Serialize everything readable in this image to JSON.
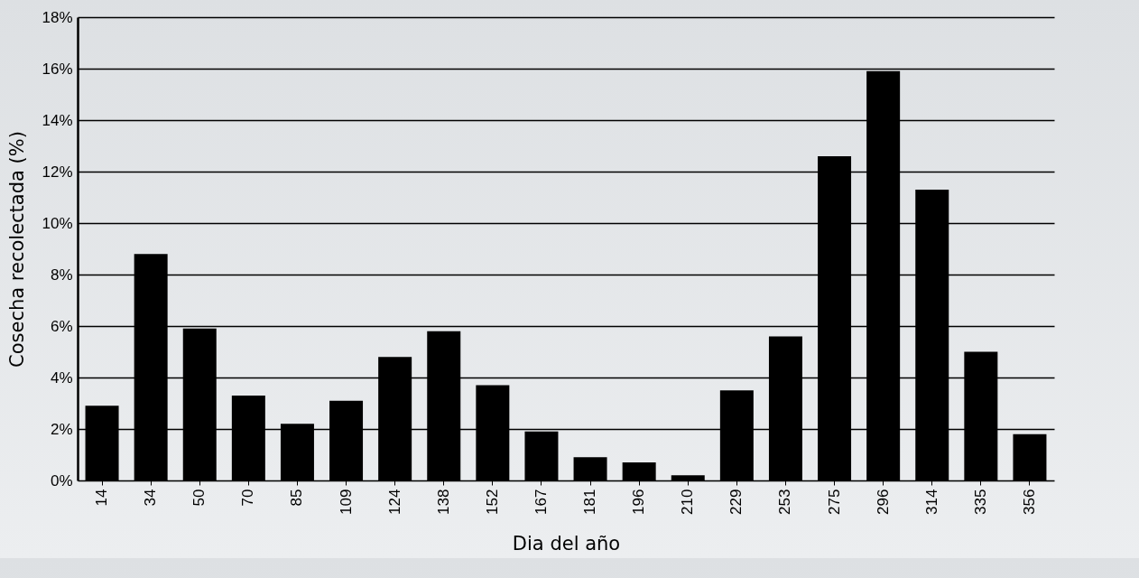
{
  "chart_data": {
    "type": "bar",
    "xlabel": "Dia del año",
    "ylabel": "Cosecha recolectada (%)",
    "categories": [
      "14",
      "34",
      "50",
      "70",
      "85",
      "109",
      "124",
      "138",
      "152",
      "167",
      "181",
      "196",
      "210",
      "229",
      "253",
      "275",
      "296",
      "314",
      "335",
      "356"
    ],
    "values": [
      2.9,
      8.8,
      5.9,
      3.3,
      2.2,
      3.1,
      4.8,
      5.8,
      3.7,
      1.9,
      0.9,
      0.7,
      0.2,
      3.5,
      5.6,
      12.6,
      15.9,
      11.3,
      5.0,
      1.8
    ],
    "color": "#000000",
    "ylim": [
      0,
      18
    ],
    "yticks": [
      {
        "value": 0,
        "label": "0%"
      },
      {
        "value": 2,
        "label": "2%"
      },
      {
        "value": 4,
        "label": "4%"
      },
      {
        "value": 6,
        "label": "6%"
      },
      {
        "value": 8,
        "label": "8%"
      },
      {
        "value": 10,
        "label": "10%"
      },
      {
        "value": 12,
        "label": "12%"
      },
      {
        "value": 14,
        "label": "14%"
      },
      {
        "value": 16,
        "label": "16%"
      },
      {
        "value": 18,
        "label": "18%"
      }
    ],
    "grid": "y"
  }
}
